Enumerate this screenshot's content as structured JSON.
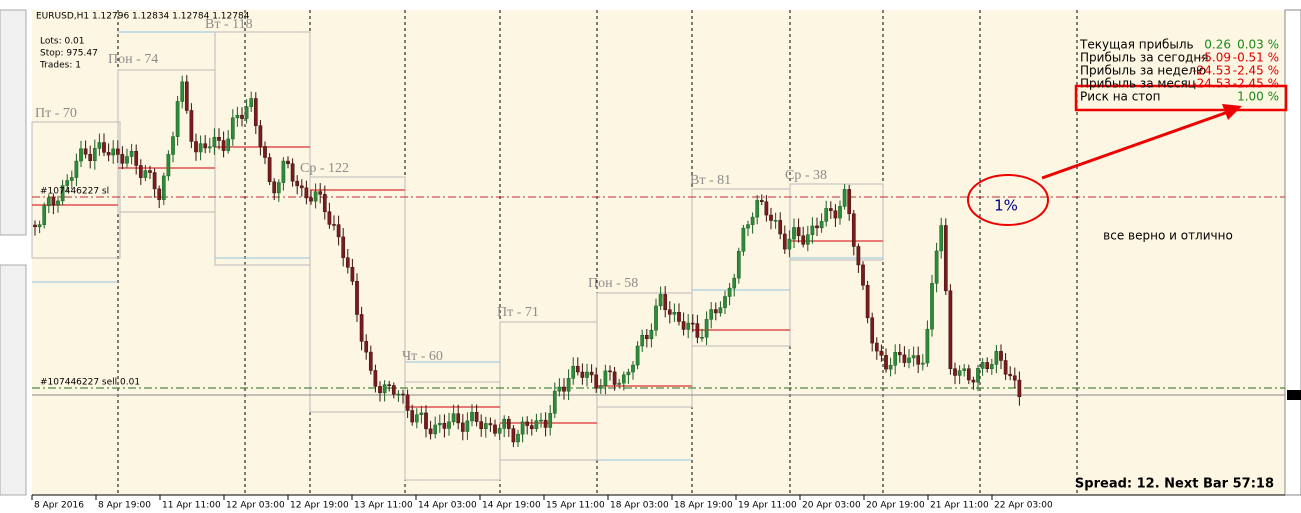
{
  "header": {
    "symbol": "EURUSD,H1  1.12796 1.12834 1.12784 1.12784"
  },
  "info": [
    "Lots: 0.01",
    "Stop: 975.47",
    "Trades: 1"
  ],
  "day_labels": [
    "Пт - 70",
    "Пон - 74",
    "Вт - 118",
    "Ср - 122",
    "Чт - 60",
    "Пт - 71",
    "Пон - 58",
    "Вт - 81",
    "Ср - 38"
  ],
  "orders": [
    "#107446227 sl",
    "#107446227 sell 0.01"
  ],
  "panel": {
    "rows": [
      {
        "label": "Текущая прибыль",
        "value": "0.26",
        "percent": "0.03 %"
      },
      {
        "label": "Прибыль за сегодня",
        "value": "-5.09",
        "percent": "-0.51 %"
      },
      {
        "label": "Прибыль за неделю",
        "value": "-24.53",
        "percent": "-2.45 %"
      },
      {
        "label": "Прибыль за месяц",
        "value": "-24.53",
        "percent": "-2.45 %"
      },
      {
        "label": "Риск на стоп",
        "percent": "1.00 %"
      }
    ]
  },
  "annotations": {
    "circle_label": "1%",
    "comment": "все верно и отлично"
  },
  "status": "Spread: 12. Next Bar 57:18",
  "time_axis": [
    "8 Apr 2016",
    "8 Apr 19:00",
    "11 Apr 11:00",
    "12 Apr 03:00",
    "12 Apr 19:00",
    "13 Apr 11:00",
    "14 Apr 03:00",
    "14 Apr 19:00",
    "15 Apr 11:00",
    "18 Apr 03:00",
    "18 Apr 19:00",
    "19 Apr 11:00",
    "20 Apr 03:00",
    "20 Apr 19:00",
    "21 Apr 11:00",
    "22 Apr 03:00"
  ]
}
